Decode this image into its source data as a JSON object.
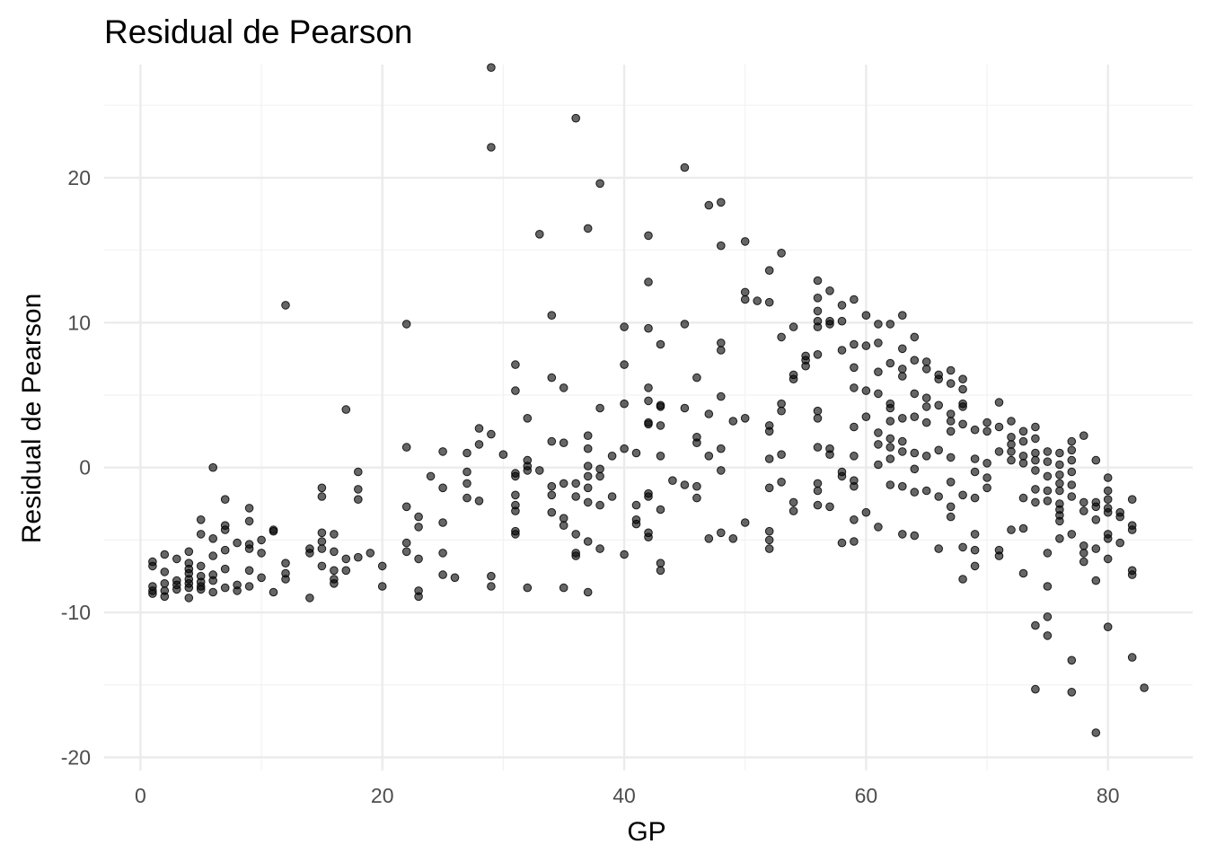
{
  "chart_data": {
    "type": "scatter",
    "title": "Residual de Pearson",
    "xlabel": "GP",
    "ylabel": "Residual de Pearson",
    "xlim": [
      -3,
      87
    ],
    "ylim": [
      -20.9,
      27.8
    ],
    "x_ticks": [
      0,
      20,
      40,
      60,
      80
    ],
    "x_tick_labels": [
      "0",
      "20",
      "40",
      "60",
      "80"
    ],
    "y_ticks": [
      -20,
      -10,
      0,
      10,
      20
    ],
    "y_tick_labels": [
      "-20",
      "-10",
      "0",
      "10",
      "20"
    ],
    "x_minor_ticks": [
      10,
      30,
      50,
      70
    ],
    "y_minor_ticks": [
      -15,
      -5,
      5,
      15,
      25
    ],
    "grid": true,
    "legend": "none",
    "point_color": "#000000",
    "point_alpha": 0.6,
    "points": [
      [
        1,
        -6.5
      ],
      [
        1,
        -6.8
      ],
      [
        1,
        -8.2
      ],
      [
        1,
        -8.5
      ],
      [
        1,
        -8.7
      ],
      [
        2,
        -6.0
      ],
      [
        2,
        -7.2
      ],
      [
        2,
        -8.0
      ],
      [
        2,
        -8.5
      ],
      [
        2,
        -8.9
      ],
      [
        3,
        -6.3
      ],
      [
        3,
        -7.8
      ],
      [
        3,
        -8.1
      ],
      [
        3,
        -8.4
      ],
      [
        4,
        -5.8
      ],
      [
        4,
        -6.6
      ],
      [
        4,
        -7.0
      ],
      [
        4,
        -7.3
      ],
      [
        4,
        -7.7
      ],
      [
        4,
        -8.0
      ],
      [
        4,
        -8.3
      ],
      [
        4,
        -9.0
      ],
      [
        5,
        -3.6
      ],
      [
        5,
        -4.6
      ],
      [
        5,
        -6.8
      ],
      [
        5,
        -7.5
      ],
      [
        5,
        -7.9
      ],
      [
        5,
        -8.2
      ],
      [
        5,
        -8.4
      ],
      [
        6,
        0.0
      ],
      [
        6,
        -4.9
      ],
      [
        6,
        -6.1
      ],
      [
        6,
        -7.4
      ],
      [
        6,
        -7.8
      ],
      [
        6,
        -8.6
      ],
      [
        7,
        -2.2
      ],
      [
        7,
        -4.0
      ],
      [
        7,
        -4.3
      ],
      [
        7,
        -5.7
      ],
      [
        7,
        -7.0
      ],
      [
        7,
        -8.3
      ],
      [
        8,
        -5.2
      ],
      [
        8,
        -8.1
      ],
      [
        8,
        -8.5
      ],
      [
        9,
        -2.8
      ],
      [
        9,
        -3.7
      ],
      [
        9,
        -5.3
      ],
      [
        9,
        -5.6
      ],
      [
        9,
        -7.1
      ],
      [
        9,
        -8.2
      ],
      [
        10,
        -5.0
      ],
      [
        10,
        -5.9
      ],
      [
        10,
        -7.6
      ],
      [
        11,
        -4.3
      ],
      [
        11,
        -4.4
      ],
      [
        11,
        -8.6
      ],
      [
        12,
        11.2
      ],
      [
        12,
        -6.6
      ],
      [
        12,
        -7.3
      ],
      [
        12,
        -7.7
      ],
      [
        14,
        -5.6
      ],
      [
        14,
        -5.9
      ],
      [
        14,
        -9.0
      ],
      [
        15,
        -1.4
      ],
      [
        15,
        -2.0
      ],
      [
        15,
        -4.5
      ],
      [
        15,
        -5.1
      ],
      [
        15,
        -5.6
      ],
      [
        15,
        -6.8
      ],
      [
        16,
        -4.6
      ],
      [
        16,
        -5.8
      ],
      [
        16,
        -7.1
      ],
      [
        16,
        -7.7
      ],
      [
        16,
        -8.0
      ],
      [
        17,
        4.0
      ],
      [
        17,
        -6.3
      ],
      [
        17,
        -7.1
      ],
      [
        18,
        -0.3
      ],
      [
        18,
        -1.5
      ],
      [
        18,
        -2.2
      ],
      [
        18,
        -6.2
      ],
      [
        19,
        -5.9
      ],
      [
        20,
        -6.8
      ],
      [
        20,
        -8.2
      ],
      [
        22,
        9.9
      ],
      [
        22,
        1.4
      ],
      [
        22,
        -2.7
      ],
      [
        22,
        -5.2
      ],
      [
        22,
        -5.8
      ],
      [
        23,
        -3.4
      ],
      [
        23,
        -4.1
      ],
      [
        23,
        -6.3
      ],
      [
        23,
        -8.5
      ],
      [
        23,
        -8.9
      ],
      [
        24,
        -0.6
      ],
      [
        25,
        1.1
      ],
      [
        25,
        -1.4
      ],
      [
        25,
        -3.8
      ],
      [
        25,
        -5.9
      ],
      [
        25,
        -7.4
      ],
      [
        26,
        -7.6
      ],
      [
        27,
        1.0
      ],
      [
        27,
        -0.3
      ],
      [
        27,
        -1.1
      ],
      [
        27,
        -2.1
      ],
      [
        28,
        2.7
      ],
      [
        28,
        1.6
      ],
      [
        28,
        -2.3
      ],
      [
        29,
        27.6
      ],
      [
        29,
        22.1
      ],
      [
        29,
        2.3
      ],
      [
        29,
        -7.5
      ],
      [
        29,
        -8.2
      ],
      [
        30,
        0.9
      ],
      [
        31,
        7.1
      ],
      [
        31,
        5.3
      ],
      [
        31,
        -0.4
      ],
      [
        31,
        -0.6
      ],
      [
        31,
        -1.9
      ],
      [
        31,
        -2.6
      ],
      [
        31,
        -3.0
      ],
      [
        31,
        -4.4
      ],
      [
        31,
        -4.6
      ],
      [
        32,
        3.4
      ],
      [
        32,
        0.5
      ],
      [
        32,
        0.1
      ],
      [
        32,
        -0.2
      ],
      [
        32,
        -8.3
      ],
      [
        33,
        16.1
      ],
      [
        33,
        -0.2
      ],
      [
        34,
        10.5
      ],
      [
        34,
        6.2
      ],
      [
        34,
        1.8
      ],
      [
        34,
        -1.3
      ],
      [
        34,
        -1.9
      ],
      [
        34,
        -3.1
      ],
      [
        35,
        5.5
      ],
      [
        35,
        1.7
      ],
      [
        35,
        -1.1
      ],
      [
        35,
        -3.5
      ],
      [
        35,
        -4.0
      ],
      [
        35,
        -8.3
      ],
      [
        36,
        24.1
      ],
      [
        36,
        -1.1
      ],
      [
        36,
        -2.0
      ],
      [
        36,
        -4.6
      ],
      [
        36,
        -5.9
      ],
      [
        36,
        -6.1
      ],
      [
        37,
        16.5
      ],
      [
        37,
        2.2
      ],
      [
        37,
        1.3
      ],
      [
        37,
        0.1
      ],
      [
        37,
        -0.6
      ],
      [
        37,
        -1.4
      ],
      [
        37,
        -2.4
      ],
      [
        37,
        -5.1
      ],
      [
        37,
        -8.6
      ],
      [
        38,
        19.6
      ],
      [
        38,
        4.1
      ],
      [
        38,
        -0.1
      ],
      [
        38,
        -0.6
      ],
      [
        38,
        -2.6
      ],
      [
        38,
        -5.6
      ],
      [
        39,
        0.8
      ],
      [
        39,
        -2.0
      ],
      [
        40,
        9.7
      ],
      [
        40,
        7.1
      ],
      [
        40,
        4.4
      ],
      [
        40,
        1.3
      ],
      [
        40,
        -6.0
      ],
      [
        41,
        1.0
      ],
      [
        41,
        -2.6
      ],
      [
        41,
        -3.6
      ],
      [
        41,
        -3.9
      ],
      [
        42,
        16.0
      ],
      [
        42,
        12.8
      ],
      [
        42,
        9.6
      ],
      [
        42,
        5.5
      ],
      [
        42,
        4.6
      ],
      [
        42,
        3.1
      ],
      [
        42,
        3.0
      ],
      [
        42,
        -1.8
      ],
      [
        42,
        -2.0
      ],
      [
        42,
        -4.5
      ],
      [
        42,
        -4.8
      ],
      [
        43,
        8.5
      ],
      [
        43,
        4.3
      ],
      [
        43,
        4.2
      ],
      [
        43,
        2.9
      ],
      [
        43,
        0.8
      ],
      [
        43,
        -2.9
      ],
      [
        43,
        -6.6
      ],
      [
        43,
        -7.1
      ],
      [
        44,
        -0.9
      ],
      [
        45,
        20.7
      ],
      [
        45,
        9.9
      ],
      [
        45,
        4.1
      ],
      [
        45,
        -1.2
      ],
      [
        46,
        6.2
      ],
      [
        46,
        2.1
      ],
      [
        46,
        1.7
      ],
      [
        46,
        -1.3
      ],
      [
        46,
        -2.1
      ],
      [
        47,
        18.1
      ],
      [
        47,
        3.7
      ],
      [
        47,
        0.8
      ],
      [
        47,
        -4.9
      ],
      [
        48,
        18.3
      ],
      [
        48,
        15.3
      ],
      [
        48,
        8.6
      ],
      [
        48,
        8.1
      ],
      [
        48,
        4.9
      ],
      [
        48,
        1.3
      ],
      [
        48,
        -0.2
      ],
      [
        48,
        -4.5
      ],
      [
        49,
        3.2
      ],
      [
        49,
        -4.9
      ],
      [
        50,
        15.6
      ],
      [
        50,
        12.1
      ],
      [
        50,
        11.6
      ],
      [
        50,
        3.4
      ],
      [
        50,
        -3.8
      ],
      [
        51,
        11.5
      ],
      [
        52,
        11.4
      ],
      [
        52,
        13.6
      ],
      [
        52,
        2.9
      ],
      [
        52,
        2.5
      ],
      [
        52,
        0.6
      ],
      [
        52,
        -1.4
      ],
      [
        52,
        -4.4
      ],
      [
        52,
        -5.0
      ],
      [
        52,
        -5.6
      ],
      [
        53,
        14.8
      ],
      [
        53,
        9.0
      ],
      [
        53,
        4.4
      ],
      [
        53,
        3.9
      ],
      [
        53,
        0.9
      ],
      [
        53,
        -1.0
      ],
      [
        54,
        9.7
      ],
      [
        54,
        6.4
      ],
      [
        54,
        6.1
      ],
      [
        54,
        -2.4
      ],
      [
        54,
        -3.0
      ],
      [
        55,
        7.7
      ],
      [
        55,
        7.4
      ],
      [
        55,
        7.0
      ],
      [
        56,
        12.9
      ],
      [
        56,
        11.7
      ],
      [
        56,
        10.8
      ],
      [
        56,
        10.1
      ],
      [
        56,
        9.7
      ],
      [
        56,
        7.8
      ],
      [
        56,
        3.9
      ],
      [
        56,
        3.4
      ],
      [
        56,
        1.4
      ],
      [
        56,
        -1.1
      ],
      [
        56,
        -1.6
      ],
      [
        56,
        -2.6
      ],
      [
        57,
        12.2
      ],
      [
        57,
        10.1
      ],
      [
        57,
        9.9
      ],
      [
        57,
        1.3
      ],
      [
        57,
        0.9
      ],
      [
        57,
        -2.7
      ],
      [
        58,
        11.2
      ],
      [
        58,
        10.1
      ],
      [
        58,
        8.1
      ],
      [
        58,
        -0.3
      ],
      [
        58,
        -0.6
      ],
      [
        58,
        -5.2
      ],
      [
        59,
        11.6
      ],
      [
        59,
        8.5
      ],
      [
        59,
        6.9
      ],
      [
        59,
        5.5
      ],
      [
        59,
        2.8
      ],
      [
        59,
        0.8
      ],
      [
        59,
        -0.9
      ],
      [
        59,
        -1.3
      ],
      [
        59,
        -3.6
      ],
      [
        59,
        -5.1
      ],
      [
        60,
        10.5
      ],
      [
        60,
        8.4
      ],
      [
        60,
        5.3
      ],
      [
        60,
        3.5
      ],
      [
        60,
        -3.1
      ],
      [
        61,
        9.9
      ],
      [
        61,
        8.6
      ],
      [
        61,
        6.6
      ],
      [
        61,
        5.1
      ],
      [
        61,
        2.4
      ],
      [
        61,
        1.6
      ],
      [
        61,
        0.2
      ],
      [
        61,
        -4.1
      ],
      [
        62,
        9.9
      ],
      [
        62,
        7.2
      ],
      [
        62,
        4.4
      ],
      [
        62,
        4.1
      ],
      [
        62,
        3.2
      ],
      [
        62,
        2.0
      ],
      [
        62,
        1.4
      ],
      [
        62,
        0.6
      ],
      [
        62,
        -1.2
      ],
      [
        63,
        10.5
      ],
      [
        63,
        8.2
      ],
      [
        63,
        6.8
      ],
      [
        63,
        6.3
      ],
      [
        63,
        3.4
      ],
      [
        63,
        1.8
      ],
      [
        63,
        1.1
      ],
      [
        63,
        -1.3
      ],
      [
        63,
        -4.6
      ],
      [
        64,
        9.0
      ],
      [
        64,
        7.4
      ],
      [
        64,
        5.1
      ],
      [
        64,
        3.5
      ],
      [
        64,
        1.0
      ],
      [
        64,
        -0.1
      ],
      [
        64,
        -1.7
      ],
      [
        64,
        -4.7
      ],
      [
        65,
        7.3
      ],
      [
        65,
        6.8
      ],
      [
        65,
        4.8
      ],
      [
        65,
        4.2
      ],
      [
        65,
        3.1
      ],
      [
        65,
        0.8
      ],
      [
        65,
        -1.6
      ],
      [
        66,
        6.4
      ],
      [
        66,
        6.1
      ],
      [
        66,
        4.3
      ],
      [
        66,
        1.2
      ],
      [
        66,
        -2.0
      ],
      [
        66,
        -5.6
      ],
      [
        67,
        6.7
      ],
      [
        67,
        5.8
      ],
      [
        67,
        3.7
      ],
      [
        67,
        3.2
      ],
      [
        67,
        2.5
      ],
      [
        67,
        0.7
      ],
      [
        67,
        -1.0
      ],
      [
        67,
        -2.7
      ],
      [
        67,
        -3.4
      ],
      [
        68,
        6.1
      ],
      [
        68,
        5.4
      ],
      [
        68,
        4.4
      ],
      [
        68,
        4.2
      ],
      [
        68,
        3.0
      ],
      [
        68,
        -1.9
      ],
      [
        68,
        -5.5
      ],
      [
        68,
        -7.7
      ],
      [
        69,
        2.6
      ],
      [
        69,
        0.6
      ],
      [
        69,
        -0.3
      ],
      [
        69,
        -2.1
      ],
      [
        69,
        -4.6
      ],
      [
        69,
        -5.7
      ],
      [
        69,
        -6.8
      ],
      [
        70,
        3.1
      ],
      [
        70,
        2.5
      ],
      [
        70,
        0.3
      ],
      [
        70,
        -0.7
      ],
      [
        70,
        -1.4
      ],
      [
        71,
        4.5
      ],
      [
        71,
        2.8
      ],
      [
        71,
        1.1
      ],
      [
        71,
        -5.7
      ],
      [
        71,
        -6.1
      ],
      [
        72,
        3.2
      ],
      [
        72,
        2.1
      ],
      [
        72,
        1.6
      ],
      [
        72,
        1.1
      ],
      [
        72,
        0.5
      ],
      [
        72,
        -4.3
      ],
      [
        73,
        2.5
      ],
      [
        73,
        1.8
      ],
      [
        73,
        0.8
      ],
      [
        73,
        0.3
      ],
      [
        73,
        -2.1
      ],
      [
        73,
        -4.2
      ],
      [
        73,
        -7.3
      ],
      [
        74,
        2.8
      ],
      [
        74,
        2.0
      ],
      [
        74,
        1.0
      ],
      [
        74,
        0.5
      ],
      [
        74,
        -0.2
      ],
      [
        74,
        -1.5
      ],
      [
        74,
        -2.4
      ],
      [
        74,
        -10.9
      ],
      [
        74,
        -15.3
      ],
      [
        75,
        1.1
      ],
      [
        75,
        0.4
      ],
      [
        75,
        -0.6
      ],
      [
        75,
        -1.6
      ],
      [
        75,
        -2.3
      ],
      [
        75,
        -5.9
      ],
      [
        75,
        -8.2
      ],
      [
        75,
        -10.3
      ],
      [
        75,
        -11.6
      ],
      [
        76,
        1.0
      ],
      [
        76,
        0.2
      ],
      [
        76,
        -0.5
      ],
      [
        76,
        -1.1
      ],
      [
        76,
        -1.6
      ],
      [
        76,
        -2.5
      ],
      [
        76,
        -2.9
      ],
      [
        76,
        -3.3
      ],
      [
        76,
        -3.7
      ],
      [
        76,
        -4.9
      ],
      [
        77,
        1.8
      ],
      [
        77,
        1.2
      ],
      [
        77,
        0.5
      ],
      [
        77,
        -0.3
      ],
      [
        77,
        -1.2
      ],
      [
        77,
        -2.0
      ],
      [
        77,
        -4.6
      ],
      [
        77,
        -13.3
      ],
      [
        77,
        -15.5
      ],
      [
        78,
        2.2
      ],
      [
        78,
        -2.4
      ],
      [
        78,
        -3.0
      ],
      [
        78,
        -5.4
      ],
      [
        78,
        -5.9
      ],
      [
        78,
        -6.5
      ],
      [
        79,
        0.5
      ],
      [
        79,
        -2.4
      ],
      [
        79,
        -2.7
      ],
      [
        79,
        -3.6
      ],
      [
        79,
        -5.6
      ],
      [
        79,
        -7.8
      ],
      [
        79,
        -18.3
      ],
      [
        80,
        -0.7
      ],
      [
        80,
        -1.6
      ],
      [
        80,
        -2.2
      ],
      [
        80,
        -2.8
      ],
      [
        80,
        -3.1
      ],
      [
        80,
        -4.6
      ],
      [
        80,
        -4.9
      ],
      [
        80,
        -6.3
      ],
      [
        80,
        -11.0
      ],
      [
        81,
        -3.1
      ],
      [
        81,
        -3.4
      ],
      [
        81,
        -5.2
      ],
      [
        82,
        -2.2
      ],
      [
        82,
        -4.0
      ],
      [
        82,
        -4.3
      ],
      [
        82,
        -7.1
      ],
      [
        82,
        -7.4
      ],
      [
        82,
        -13.1
      ],
      [
        83,
        -15.2
      ]
    ]
  }
}
